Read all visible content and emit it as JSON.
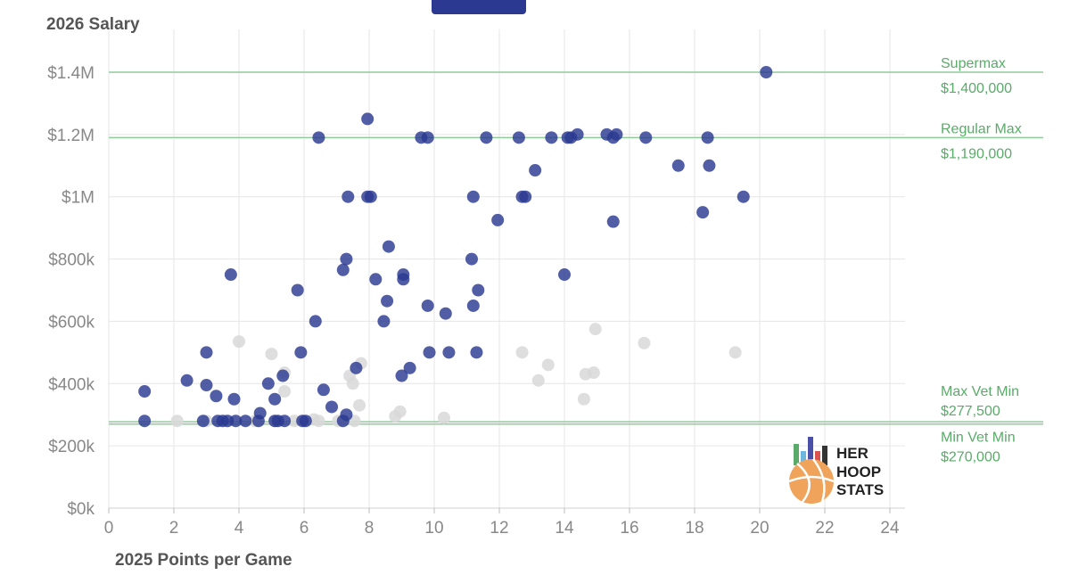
{
  "chart_data": {
    "type": "scatter",
    "title": "",
    "ylabel": "2026 Salary",
    "xlabel": "2025 Points per Game",
    "xlim": [
      0,
      24.5
    ],
    "ylim": [
      0,
      1400000
    ],
    "x_ticks": [
      0,
      2,
      4,
      6,
      8,
      10,
      12,
      14,
      16,
      18,
      20,
      22,
      24
    ],
    "x_tick_labels": [
      "0",
      "2",
      "4",
      "6",
      "8",
      "10",
      "12",
      "14",
      "16",
      "18",
      "20",
      "22",
      "24"
    ],
    "y_ticks": [
      0,
      200000,
      400000,
      600000,
      800000,
      1000000,
      1200000,
      1400000
    ],
    "y_tick_labels": [
      "$0k",
      "$200k",
      "$400k",
      "$600k",
      "$800k",
      "$1M",
      "$1.2M",
      "$1.4M"
    ],
    "grid": true,
    "reference_lines": [
      {
        "name": "Supermax",
        "value_label": "$1,400,000",
        "value": 1400000
      },
      {
        "name": "Regular Max",
        "value_label": "$1,190,000",
        "value": 1190000
      },
      {
        "name": "Max Vet Min",
        "value_label": "$277,500",
        "value": 277500
      },
      {
        "name": "Min Vet Min",
        "value_label": "$270,000",
        "value": 270000
      }
    ],
    "colors": {
      "primary": "#2b3990",
      "secondary": "#d8d8d8",
      "reference": "#8fcc9a",
      "reference_text": "#5aab69"
    },
    "series": [
      {
        "points": [
          [
            1.1,
            375000
          ],
          [
            1.1,
            280000
          ],
          [
            2.4,
            410000
          ],
          [
            2.9,
            280000
          ],
          [
            3.0,
            395000
          ],
          [
            3.0,
            500000
          ],
          [
            3.3,
            360000
          ],
          [
            3.35,
            280000
          ],
          [
            3.5,
            280000
          ],
          [
            3.65,
            280000
          ],
          [
            3.75,
            750000
          ],
          [
            3.85,
            350000
          ],
          [
            3.9,
            280000
          ],
          [
            4.2,
            280000
          ],
          [
            4.6,
            280000
          ],
          [
            4.65,
            305000
          ],
          [
            4.9,
            400000
          ],
          [
            5.1,
            350000
          ],
          [
            5.1,
            280000
          ],
          [
            5.2,
            280000
          ],
          [
            5.35,
            425000
          ],
          [
            5.4,
            280000
          ],
          [
            5.8,
            700000
          ],
          [
            5.9,
            500000
          ],
          [
            5.95,
            280000
          ],
          [
            6.05,
            280000
          ],
          [
            6.35,
            600000
          ],
          [
            6.45,
            1190000
          ],
          [
            6.6,
            380000
          ],
          [
            6.85,
            325000
          ],
          [
            7.2,
            765000
          ],
          [
            7.2,
            280000
          ],
          [
            7.3,
            800000
          ],
          [
            7.3,
            300000
          ],
          [
            7.35,
            1000000
          ],
          [
            7.6,
            450000
          ],
          [
            7.95,
            1250000
          ],
          [
            7.95,
            1000000
          ],
          [
            8.05,
            1000000
          ],
          [
            8.2,
            735000
          ],
          [
            8.45,
            600000
          ],
          [
            8.55,
            665000
          ],
          [
            8.6,
            840000
          ],
          [
            9.0,
            425000
          ],
          [
            9.05,
            750000
          ],
          [
            9.05,
            735000
          ],
          [
            9.25,
            450000
          ],
          [
            9.6,
            1190000
          ],
          [
            9.8,
            1190000
          ],
          [
            9.8,
            650000
          ],
          [
            9.85,
            500000
          ],
          [
            10.35,
            625000
          ],
          [
            10.45,
            500000
          ],
          [
            11.15,
            800000
          ],
          [
            11.2,
            1000000
          ],
          [
            11.2,
            650000
          ],
          [
            11.3,
            500000
          ],
          [
            11.35,
            700000
          ],
          [
            11.6,
            1190000
          ],
          [
            11.95,
            925000
          ],
          [
            12.6,
            1190000
          ],
          [
            12.7,
            1000000
          ],
          [
            12.8,
            1000000
          ],
          [
            13.1,
            1085000
          ],
          [
            13.6,
            1190000
          ],
          [
            14.0,
            750000
          ],
          [
            14.1,
            1190000
          ],
          [
            14.2,
            1190000
          ],
          [
            14.4,
            1200000
          ],
          [
            15.3,
            1200000
          ],
          [
            15.5,
            920000
          ],
          [
            15.5,
            1190000
          ],
          [
            15.6,
            1200000
          ],
          [
            16.5,
            1190000
          ],
          [
            17.5,
            1100000
          ],
          [
            18.25,
            950000
          ],
          [
            18.4,
            1190000
          ],
          [
            18.45,
            1100000
          ],
          [
            19.5,
            1000000
          ],
          [
            20.2,
            1400000
          ]
        ]
      },
      {
        "points": [
          [
            2.1,
            280000
          ],
          [
            3.0,
            280000
          ],
          [
            4.0,
            535000
          ],
          [
            4.5,
            280000
          ],
          [
            5.0,
            495000
          ],
          [
            5.1,
            280000
          ],
          [
            5.4,
            435000
          ],
          [
            5.4,
            375000
          ],
          [
            5.7,
            280000
          ],
          [
            6.3,
            285000
          ],
          [
            6.45,
            280000
          ],
          [
            7.05,
            280000
          ],
          [
            7.4,
            425000
          ],
          [
            7.5,
            400000
          ],
          [
            7.55,
            280000
          ],
          [
            7.7,
            330000
          ],
          [
            7.75,
            465000
          ],
          [
            8.8,
            295000
          ],
          [
            8.95,
            310000
          ],
          [
            10.3,
            290000
          ],
          [
            12.7,
            500000
          ],
          [
            13.2,
            410000
          ],
          [
            13.5,
            460000
          ],
          [
            14.6,
            350000
          ],
          [
            14.65,
            430000
          ],
          [
            14.9,
            435000
          ],
          [
            14.95,
            575000
          ],
          [
            16.45,
            530000
          ],
          [
            19.25,
            500000
          ]
        ]
      }
    ]
  },
  "logo": {
    "line1": "HER",
    "line2": "HOOP",
    "line3": "STATS"
  }
}
